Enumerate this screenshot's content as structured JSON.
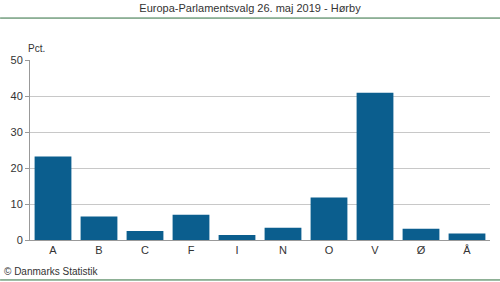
{
  "chart_data": {
    "type": "bar",
    "title": "Europa-Parlamentsvalg 26. maj 2019 - Hørby",
    "y_label": "Pct.",
    "annotations": [
      "© Danmarks Statistik"
    ],
    "categories": [
      "A",
      "B",
      "C",
      "F",
      "I",
      "N",
      "O",
      "V",
      "Ø",
      "Å"
    ],
    "values": [
      23.2,
      6.5,
      2.5,
      7.0,
      1.4,
      3.4,
      11.8,
      40.9,
      3.1,
      1.8
    ],
    "color": "#0b5e8e",
    "ylim": [
      0,
      50
    ],
    "yticks": [
      0,
      10,
      20,
      30,
      40,
      50
    ],
    "grid": true
  }
}
